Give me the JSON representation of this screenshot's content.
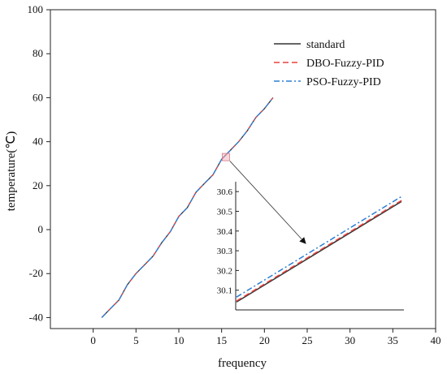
{
  "chart_data": {
    "type": "line",
    "title": "",
    "xlabel": "frequency",
    "ylabel": "temperature(℃)",
    "xlim": [
      -5,
      40
    ],
    "ylim": [
      -45,
      100
    ],
    "xticks": [
      0,
      5,
      10,
      15,
      20,
      25,
      30,
      35,
      40
    ],
    "yticks": [
      -40,
      -20,
      0,
      20,
      40,
      60,
      80,
      100
    ],
    "grid": false,
    "legend_position": "top-right",
    "x": [
      1,
      2,
      3,
      4,
      5,
      6,
      7,
      8,
      9,
      10,
      11,
      12,
      13,
      14,
      15,
      16,
      17,
      18,
      19,
      20,
      21
    ],
    "series": [
      {
        "name": "standard",
        "color": "#333333",
        "dash": "solid",
        "values": [
          -40,
          -36,
          -32,
          -25,
          -20,
          -16,
          -12,
          -6,
          -1,
          6,
          10,
          17,
          21,
          25,
          32,
          36,
          40,
          45,
          51,
          55,
          60
        ]
      },
      {
        "name": "DBO-Fuzzy-PID",
        "color": "#e8413c",
        "dash": "dashed",
        "values": [
          -40,
          -36,
          -32,
          -25,
          -20,
          -16,
          -12,
          -6,
          -1,
          6,
          10,
          17,
          21,
          25,
          32,
          36,
          40,
          45,
          51,
          55,
          60
        ]
      },
      {
        "name": "PSO-Fuzzy-PID",
        "color": "#2b7fd4",
        "dash": "dashdot",
        "values": [
          -40,
          -36,
          -32,
          -25,
          -20,
          -16,
          -12,
          -6,
          -1,
          6,
          10,
          17,
          21,
          25,
          32,
          36,
          40,
          45,
          51,
          55,
          60
        ]
      }
    ],
    "inset": {
      "source_center": [
        15.5,
        33
      ],
      "ylim": [
        30.0,
        30.65
      ],
      "yticks": [
        "30.1",
        "30.2",
        "30.3",
        "30.4",
        "30.5",
        "30.6"
      ],
      "lines": [
        {
          "series": "standard",
          "y_start": 30.04,
          "y_end": 30.55
        },
        {
          "series": "DBO-Fuzzy-PID",
          "y_start": 30.045,
          "y_end": 30.555
        },
        {
          "series": "PSO-Fuzzy-PID",
          "y_start": 30.065,
          "y_end": 30.575
        }
      ]
    }
  }
}
